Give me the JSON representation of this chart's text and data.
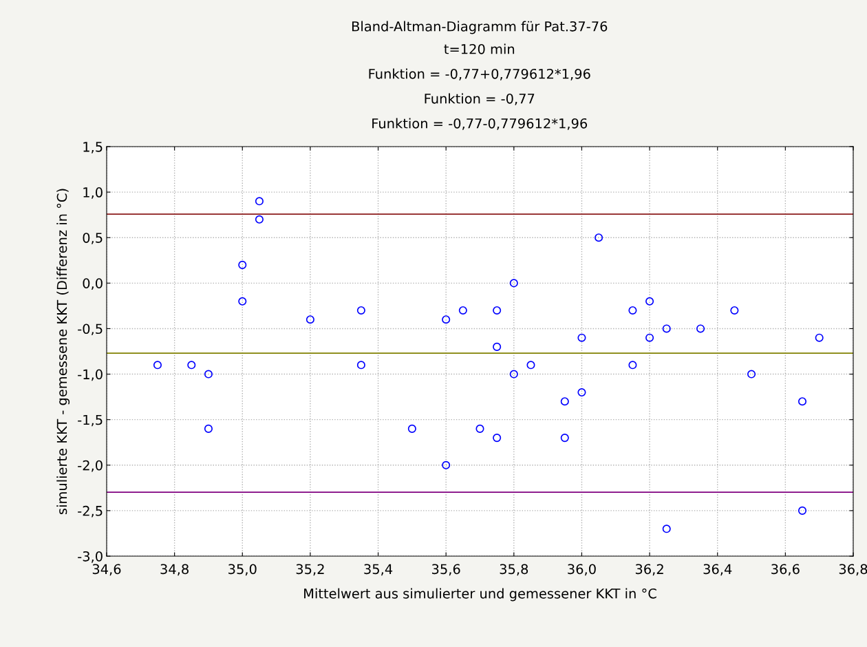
{
  "chart_data": {
    "type": "scatter",
    "title": "Bland-Altman-Diagramm für Pat.37-76",
    "subtitle": "t=120 min",
    "annotations": [
      "Funktion = -0,77+0,779612*1,96",
      "Funktion = -0,77",
      "Funktion = -0,77-0,779612*1,96"
    ],
    "xlabel": "Mittelwert aus simulierter und gemessener KKT in °C",
    "ylabel": "simulierte KKT - gemessene KKT (Differenz in °C)",
    "x": [
      34.75,
      34.85,
      34.9,
      34.9,
      35.0,
      35.0,
      35.05,
      35.05,
      35.2,
      35.35,
      35.35,
      35.5,
      35.6,
      35.6,
      35.65,
      35.7,
      35.75,
      35.75,
      35.75,
      35.8,
      35.8,
      35.85,
      35.95,
      35.95,
      36.0,
      36.0,
      36.05,
      36.15,
      36.15,
      36.2,
      36.2,
      36.25,
      36.25,
      36.35,
      36.45,
      36.5,
      36.65,
      36.65,
      36.7
    ],
    "series": [
      {
        "color": "#0000ff",
        "values": [
          -0.9,
          -0.9,
          -1.0,
          -1.6,
          0.2,
          -0.2,
          0.9,
          0.7,
          -0.4,
          -0.3,
          -0.9,
          -1.6,
          -0.4,
          -2.0,
          -0.3,
          -1.6,
          -0.3,
          -0.7,
          -1.7,
          0.0,
          -1.0,
          -0.9,
          -1.3,
          -1.7,
          -0.6,
          -1.2,
          0.5,
          -0.3,
          -0.9,
          -0.2,
          -0.6,
          -0.5,
          -2.7,
          -0.5,
          -0.3,
          -1.0,
          -1.3,
          -2.5,
          -0.6
        ]
      }
    ],
    "marker": "circle",
    "grid": true,
    "legend": false,
    "ref_lines": [
      {
        "axis": "y",
        "value": 0.758,
        "color": "#8b1a1a"
      },
      {
        "axis": "y",
        "value": -0.77,
        "color": "#808000"
      },
      {
        "axis": "y",
        "value": -2.298,
        "color": "#800080"
      }
    ],
    "xlim": [
      34.6,
      36.8
    ],
    "xticks": [
      {
        "value": 34.6,
        "label": "34,6"
      },
      {
        "value": 34.8,
        "label": "34,8"
      },
      {
        "value": 35.0,
        "label": "35,0"
      },
      {
        "value": 35.2,
        "label": "35,2"
      },
      {
        "value": 35.4,
        "label": "35,4"
      },
      {
        "value": 35.6,
        "label": "35,6"
      },
      {
        "value": 35.8,
        "label": "35,8"
      },
      {
        "value": 36.0,
        "label": "36,0"
      },
      {
        "value": 36.2,
        "label": "36,2"
      },
      {
        "value": 36.4,
        "label": "36,4"
      },
      {
        "value": 36.6,
        "label": "36,6"
      },
      {
        "value": 36.8,
        "label": "36,8"
      }
    ],
    "ylim": [
      -3.0,
      1.5
    ],
    "yticks": [
      {
        "value": -3.0,
        "label": "-3,0"
      },
      {
        "value": -2.5,
        "label": "-2,5"
      },
      {
        "value": -2.0,
        "label": "-2,0"
      },
      {
        "value": -1.5,
        "label": "-1,5"
      },
      {
        "value": -1.0,
        "label": "-1,0"
      },
      {
        "value": -0.5,
        "label": "-0,5"
      },
      {
        "value": 0.0,
        "label": "0,0"
      },
      {
        "value": 0.5,
        "label": "0,5"
      },
      {
        "value": 1.0,
        "label": "1,0"
      },
      {
        "value": 1.5,
        "label": "1,5"
      }
    ]
  }
}
